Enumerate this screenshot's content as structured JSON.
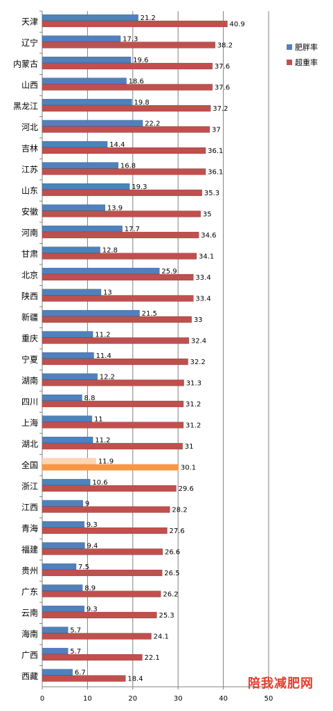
{
  "chart_data": {
    "type": "bar",
    "orientation": "horizontal",
    "categories": [
      "天津",
      "辽宁",
      "内蒙古",
      "山西",
      "黑龙江",
      "河北",
      "吉林",
      "江苏",
      "山东",
      "安徽",
      "河南",
      "甘肃",
      "北京",
      "陕西",
      "新疆",
      "重庆",
      "宁夏",
      "湖南",
      "四川",
      "上海",
      "湖北",
      "全国",
      "浙江",
      "江西",
      "青海",
      "福建",
      "贵州",
      "广东",
      "云南",
      "海南",
      "广西",
      "西藏"
    ],
    "series": [
      {
        "name": "肥胖率",
        "color": "#4f81bd",
        "values": [
          21.2,
          17.3,
          19.6,
          18.6,
          19.8,
          22.2,
          14.4,
          16.8,
          19.3,
          13.9,
          17.7,
          12.8,
          25.9,
          13,
          21.5,
          11.2,
          11.4,
          12.2,
          8.8,
          11,
          11.2,
          11.9,
          10.6,
          9,
          9.3,
          9.4,
          7.5,
          8.9,
          9.3,
          5.7,
          5.7,
          6.7
        ]
      },
      {
        "name": "超重率",
        "color": "#c0504d",
        "values": [
          40.9,
          38.2,
          37.6,
          37.6,
          37.2,
          37,
          36.1,
          36.1,
          35.3,
          35,
          34.6,
          34.1,
          33.4,
          33.4,
          33,
          32.4,
          32.2,
          31.3,
          31.2,
          31.2,
          31,
          30.1,
          29.6,
          28.2,
          27.6,
          26.6,
          26.5,
          26.2,
          25.3,
          24.1,
          22.1,
          18.4
        ]
      }
    ],
    "highlight": {
      "category": "全国",
      "colors": [
        "#fcd5b4",
        "#f79646"
      ]
    },
    "xlim": [
      0,
      50
    ],
    "xticks": [
      "0",
      "10",
      "20",
      "30",
      "40",
      "50"
    ],
    "grid": true,
    "legend": "right"
  },
  "watermark": "陪我减肥网"
}
